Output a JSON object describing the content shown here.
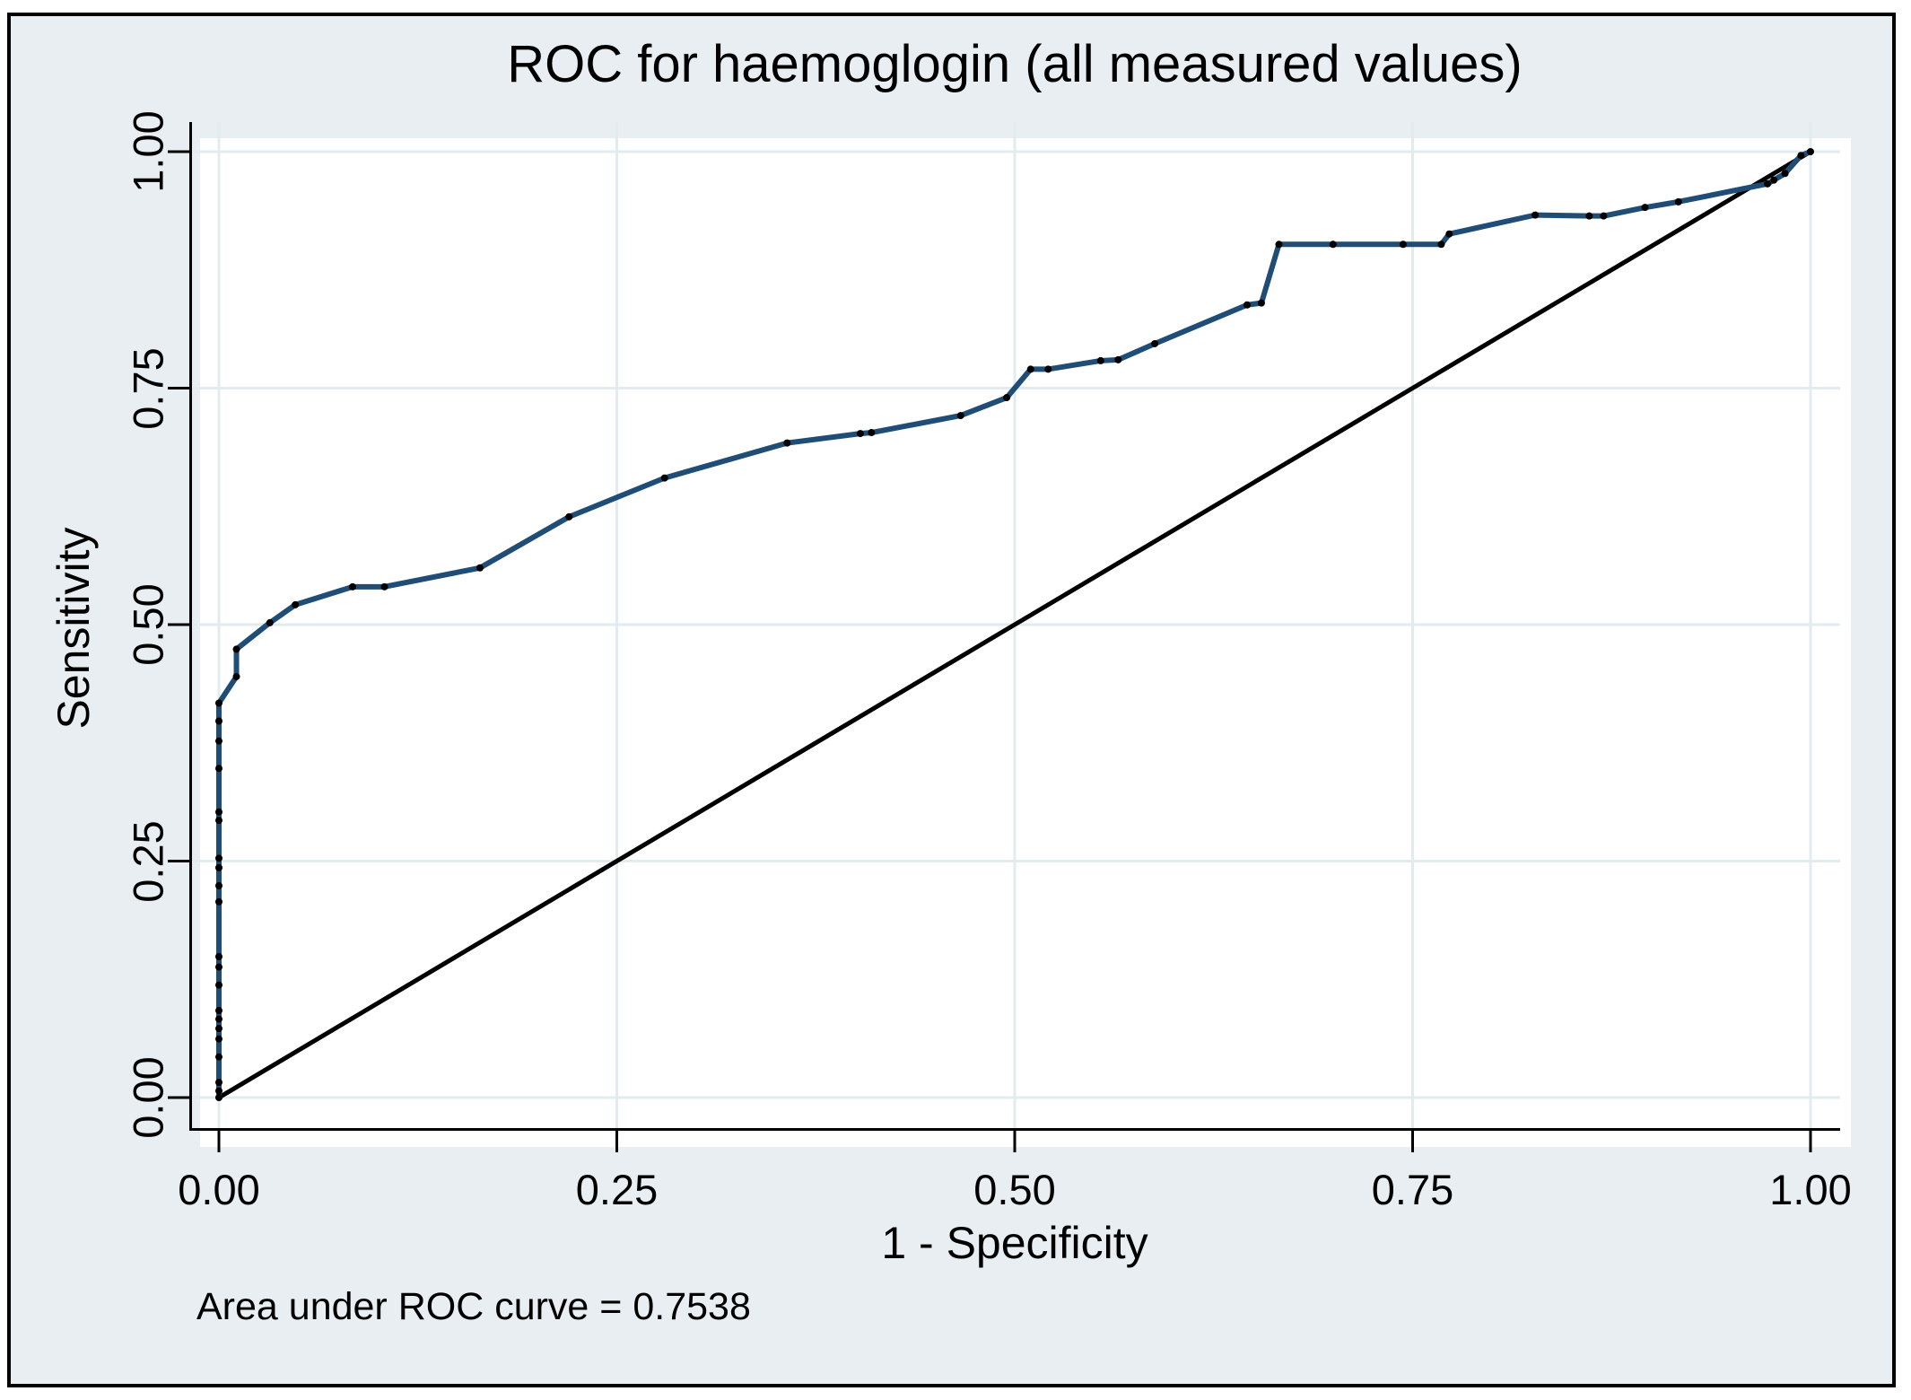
{
  "figure": {
    "title": "ROC for haemoglogin (all measured values)",
    "xlabel": "1 - Specificity",
    "ylabel": "Sensitivity",
    "note": "Area under ROC curve = 0.7538"
  },
  "colors": {
    "figure_background": "#e8eef1",
    "plot_background": "#ffffff",
    "gridline": "#e2ecef",
    "axis": "#000000",
    "roc_line": "#1f4d76",
    "marker": "#000000",
    "reference_line": "#000000",
    "text": "#000000",
    "border": "#000000"
  },
  "chart_data": {
    "type": "line",
    "title": "ROC for haemoglogin (all measured values)",
    "xlabel": "1 - Specificity",
    "ylabel": "Sensitivity",
    "xlim": [
      0,
      1
    ],
    "ylim": [
      0,
      1
    ],
    "grid": true,
    "legend_position": "none",
    "xticks": [
      {
        "value": 0.0,
        "label": "0.00"
      },
      {
        "value": 0.25,
        "label": "0.25"
      },
      {
        "value": 0.5,
        "label": "0.50"
      },
      {
        "value": 0.75,
        "label": "0.75"
      },
      {
        "value": 1.0,
        "label": "1.00"
      }
    ],
    "yticks": [
      {
        "value": 0.0,
        "label": "0.00"
      },
      {
        "value": 0.25,
        "label": "0.25"
      },
      {
        "value": 0.5,
        "label": "0.50"
      },
      {
        "value": 0.75,
        "label": "0.75"
      },
      {
        "value": 1.0,
        "label": "1.00"
      }
    ],
    "annotation": "Area under ROC curve = 0.7538",
    "auc": 0.7538,
    "series": [
      {
        "name": "ROC curve",
        "marker": "dot",
        "points": [
          [
            0,
            0
          ],
          [
            0,
            0.007
          ],
          [
            0,
            0.016
          ],
          [
            0,
            0.043
          ],
          [
            0,
            0.062
          ],
          [
            0,
            0.073
          ],
          [
            0,
            0.083
          ],
          [
            0,
            0.092
          ],
          [
            0,
            0.119
          ],
          [
            0,
            0.138
          ],
          [
            0,
            0.149
          ],
          [
            0,
            0.207
          ],
          [
            0,
            0.224
          ],
          [
            0,
            0.243
          ],
          [
            0,
            0.253
          ],
          [
            0,
            0.293
          ],
          [
            0,
            0.302
          ],
          [
            0,
            0.348
          ],
          [
            0,
            0.377
          ],
          [
            0,
            0.398
          ],
          [
            0,
            0.417
          ],
          [
            0.011,
            0.445
          ],
          [
            0.011,
            0.474
          ],
          [
            0.032,
            0.502
          ],
          [
            0.048,
            0.521
          ],
          [
            0.084,
            0.54
          ],
          [
            0.104,
            0.54
          ],
          [
            0.164,
            0.56
          ],
          [
            0.22,
            0.614
          ],
          [
            0.28,
            0.655
          ],
          [
            0.357,
            0.692
          ],
          [
            0.403,
            0.702
          ],
          [
            0.41,
            0.703
          ],
          [
            0.466,
            0.721
          ],
          [
            0.495,
            0.74
          ],
          [
            0.51,
            0.77
          ],
          [
            0.521,
            0.77
          ],
          [
            0.554,
            0.779
          ],
          [
            0.565,
            0.78
          ],
          [
            0.588,
            0.797
          ],
          [
            0.646,
            0.838
          ],
          [
            0.655,
            0.84
          ],
          [
            0.666,
            0.902
          ],
          [
            0.7,
            0.902
          ],
          [
            0.744,
            0.902
          ],
          [
            0.768,
            0.902
          ],
          [
            0.773,
            0.913
          ],
          [
            0.827,
            0.933
          ],
          [
            0.861,
            0.932
          ],
          [
            0.87,
            0.932
          ],
          [
            0.896,
            0.941
          ],
          [
            0.917,
            0.947
          ],
          [
            0.973,
            0.966
          ],
          [
            0.977,
            0.97
          ],
          [
            0.984,
            0.977
          ],
          [
            0.994,
            0.996
          ],
          [
            1,
            1
          ]
        ]
      },
      {
        "name": "Reference line",
        "marker": "none",
        "points": [
          [
            0,
            0
          ],
          [
            1,
            1
          ]
        ]
      }
    ]
  }
}
